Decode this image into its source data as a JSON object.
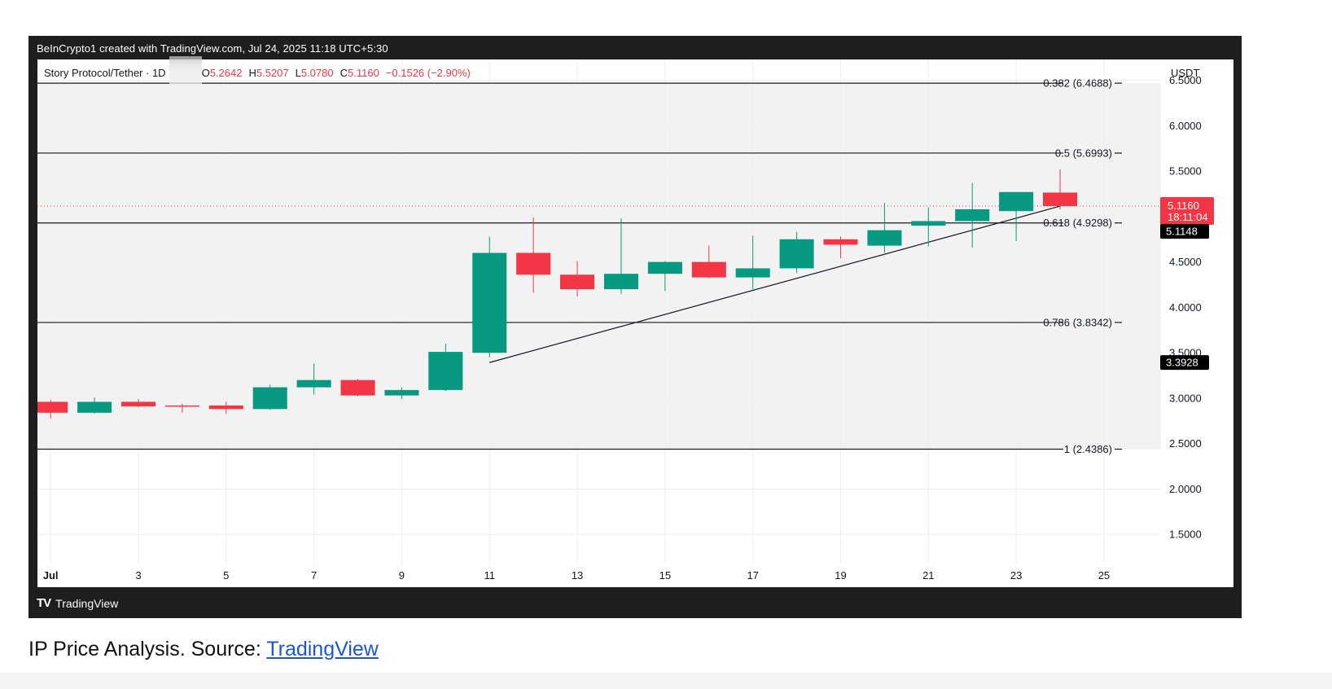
{
  "header": {
    "text": "BeInCrypto1 created with TradingView.com, Jul 24, 2025 11:18 UTC+5:30"
  },
  "legend": {
    "symbol": "Story Protocol/Tether · 1D",
    "open_label": "O",
    "open": "5.2642",
    "high_label": "H",
    "high": "5.5207",
    "low_label": "L",
    "low": "5.0780",
    "close_label": "C",
    "close": "5.1160",
    "change": "−0.1526 (−2.90%)"
  },
  "footer": {
    "logo": "TV",
    "brand": "TradingView"
  },
  "caption": {
    "text": "IP Price Analysis. Source: ",
    "link_text": "TradingView"
  },
  "colors": {
    "up": "#089981",
    "down": "#f23645",
    "grid": "#eeeeee",
    "zone": "#f2f2f2",
    "fib_line": "#1a1a1a",
    "frame": "#1e1e1e"
  },
  "chart_data": {
    "type": "candlestick",
    "title": "Story Protocol/Tether · 1D",
    "currency": "USDT",
    "x_ticks": [
      "Jul",
      "3",
      "5",
      "7",
      "9",
      "11",
      "13",
      "15",
      "17",
      "19",
      "21",
      "23",
      "25"
    ],
    "x_tick_days": [
      1,
      3,
      5,
      7,
      9,
      11,
      13,
      15,
      17,
      19,
      21,
      23,
      25
    ],
    "x_range": [
      0.7,
      26.3
    ],
    "y_ticks": [
      "6.5000",
      "6.0000",
      "5.5000",
      "5.0000",
      "4.5000",
      "4.0000",
      "3.5000",
      "3.0000",
      "2.5000",
      "2.0000",
      "1.5000"
    ],
    "y_tick_values": [
      6.5,
      6.0,
      5.5,
      5.0,
      4.5,
      4.0,
      3.5,
      3.0,
      2.5,
      2.0,
      1.5
    ],
    "ylim": [
      1.17,
      6.73
    ],
    "candles": [
      {
        "day": 1,
        "open": 2.96,
        "high": 2.98,
        "low": 2.78,
        "close": 2.84
      },
      {
        "day": 2,
        "open": 2.84,
        "high": 3.01,
        "low": 2.83,
        "close": 2.96
      },
      {
        "day": 3,
        "open": 2.96,
        "high": 2.99,
        "low": 2.9,
        "close": 2.91
      },
      {
        "day": 4,
        "open": 2.92,
        "high": 2.94,
        "low": 2.84,
        "close": 2.91
      },
      {
        "day": 5,
        "open": 2.92,
        "high": 2.96,
        "low": 2.83,
        "close": 2.88
      },
      {
        "day": 6,
        "open": 2.88,
        "high": 3.15,
        "low": 2.87,
        "close": 3.12
      },
      {
        "day": 7,
        "open": 3.12,
        "high": 3.38,
        "low": 3.04,
        "close": 3.2
      },
      {
        "day": 8,
        "open": 3.2,
        "high": 3.21,
        "low": 3.02,
        "close": 3.03
      },
      {
        "day": 9,
        "open": 3.03,
        "high": 3.12,
        "low": 2.99,
        "close": 3.09
      },
      {
        "day": 10,
        "open": 3.09,
        "high": 3.6,
        "low": 3.08,
        "close": 3.51
      },
      {
        "day": 11,
        "open": 3.5,
        "high": 4.78,
        "low": 3.45,
        "close": 4.6
      },
      {
        "day": 12,
        "open": 4.6,
        "high": 4.99,
        "low": 4.16,
        "close": 4.36
      },
      {
        "day": 13,
        "open": 4.36,
        "high": 4.51,
        "low": 4.12,
        "close": 4.2
      },
      {
        "day": 14,
        "open": 4.2,
        "high": 4.98,
        "low": 4.15,
        "close": 4.37
      },
      {
        "day": 15,
        "open": 4.37,
        "high": 4.51,
        "low": 4.18,
        "close": 4.5
      },
      {
        "day": 16,
        "open": 4.5,
        "high": 4.68,
        "low": 4.32,
        "close": 4.33
      },
      {
        "day": 17,
        "open": 4.33,
        "high": 4.79,
        "low": 4.2,
        "close": 4.43
      },
      {
        "day": 18,
        "open": 4.43,
        "high": 4.83,
        "low": 4.38,
        "close": 4.75
      },
      {
        "day": 19,
        "open": 4.75,
        "high": 4.78,
        "low": 4.54,
        "close": 4.69
      },
      {
        "day": 20,
        "open": 4.68,
        "high": 5.15,
        "low": 4.6,
        "close": 4.85
      },
      {
        "day": 21,
        "open": 4.9,
        "high": 5.1,
        "low": 4.67,
        "close": 4.95
      },
      {
        "day": 22,
        "open": 4.95,
        "high": 5.37,
        "low": 4.66,
        "close": 5.08
      },
      {
        "day": 23,
        "open": 5.06,
        "high": 5.27,
        "low": 4.73,
        "close": 5.27
      },
      {
        "day": 24,
        "open": 5.2642,
        "high": 5.5207,
        "low": 5.078,
        "close": 5.116
      }
    ],
    "fib_levels": [
      {
        "value": 6.4688,
        "label": "0.382 (6.4688)"
      },
      {
        "value": 5.6993,
        "label": "0.5 (5.6993)"
      },
      {
        "value": 4.9298,
        "label": "0.618 (4.9298)"
      },
      {
        "value": 3.8342,
        "label": "0.786 (3.8342)"
      },
      {
        "value": 2.4386,
        "label": "1 (2.4386)"
      }
    ],
    "zone": {
      "top": 6.4688,
      "bottom": 2.4386
    },
    "trendline": {
      "start": {
        "day": 11,
        "value": 3.3928
      },
      "end": {
        "day": 24,
        "value": 5.1148
      }
    },
    "price_labels": [
      {
        "value": 5.116,
        "text": "5.1160",
        "subtext": "18:11:04",
        "style": "current"
      },
      {
        "value": 5.1148,
        "text": "5.1148",
        "style": "marker"
      },
      {
        "value": 3.3928,
        "text": "3.3928",
        "style": "marker"
      }
    ]
  }
}
